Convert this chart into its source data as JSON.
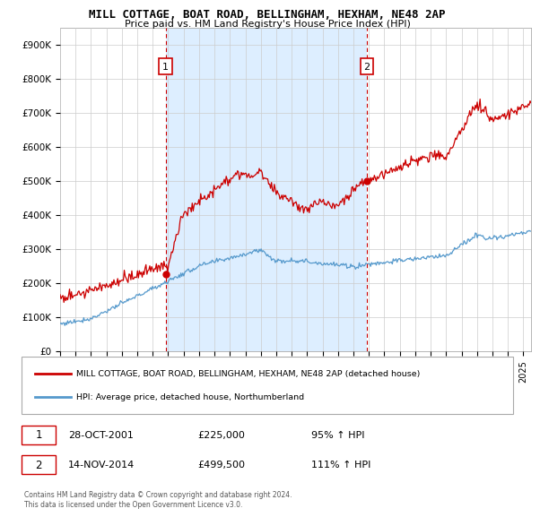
{
  "title1": "MILL COTTAGE, BOAT ROAD, BELLINGHAM, HEXHAM, NE48 2AP",
  "title2": "Price paid vs. HM Land Registry's House Price Index (HPI)",
  "ylabel_ticks": [
    "£0",
    "£100K",
    "£200K",
    "£300K",
    "£400K",
    "£500K",
    "£600K",
    "£700K",
    "£800K",
    "£900K"
  ],
  "ytick_values": [
    0,
    100000,
    200000,
    300000,
    400000,
    500000,
    600000,
    700000,
    800000,
    900000
  ],
  "ylim": [
    0,
    950000
  ],
  "xlim_start": 1995.0,
  "xlim_end": 2025.5,
  "sale1_x": 2001.83,
  "sale1_y": 225000,
  "sale1_label": "1",
  "sale2_x": 2014.87,
  "sale2_y": 499500,
  "sale2_label": "2",
  "legend_house": "MILL COTTAGE, BOAT ROAD, BELLINGHAM, HEXHAM, NE48 2AP (detached house)",
  "legend_hpi": "HPI: Average price, detached house, Northumberland",
  "note1_label": "1",
  "note1_date": "28-OCT-2001",
  "note1_price": "£225,000",
  "note1_hpi": "95% ↑ HPI",
  "note2_label": "2",
  "note2_date": "14-NOV-2014",
  "note2_price": "£499,500",
  "note2_hpi": "111% ↑ HPI",
  "footer": "Contains HM Land Registry data © Crown copyright and database right 2024.\nThis data is licensed under the Open Government Licence v3.0.",
  "line_color_house": "#cc0000",
  "line_color_hpi": "#5599cc",
  "vline_color": "#cc0000",
  "shade_color": "#ddeeff",
  "bg_color": "#ffffff",
  "grid_color": "#cccccc"
}
